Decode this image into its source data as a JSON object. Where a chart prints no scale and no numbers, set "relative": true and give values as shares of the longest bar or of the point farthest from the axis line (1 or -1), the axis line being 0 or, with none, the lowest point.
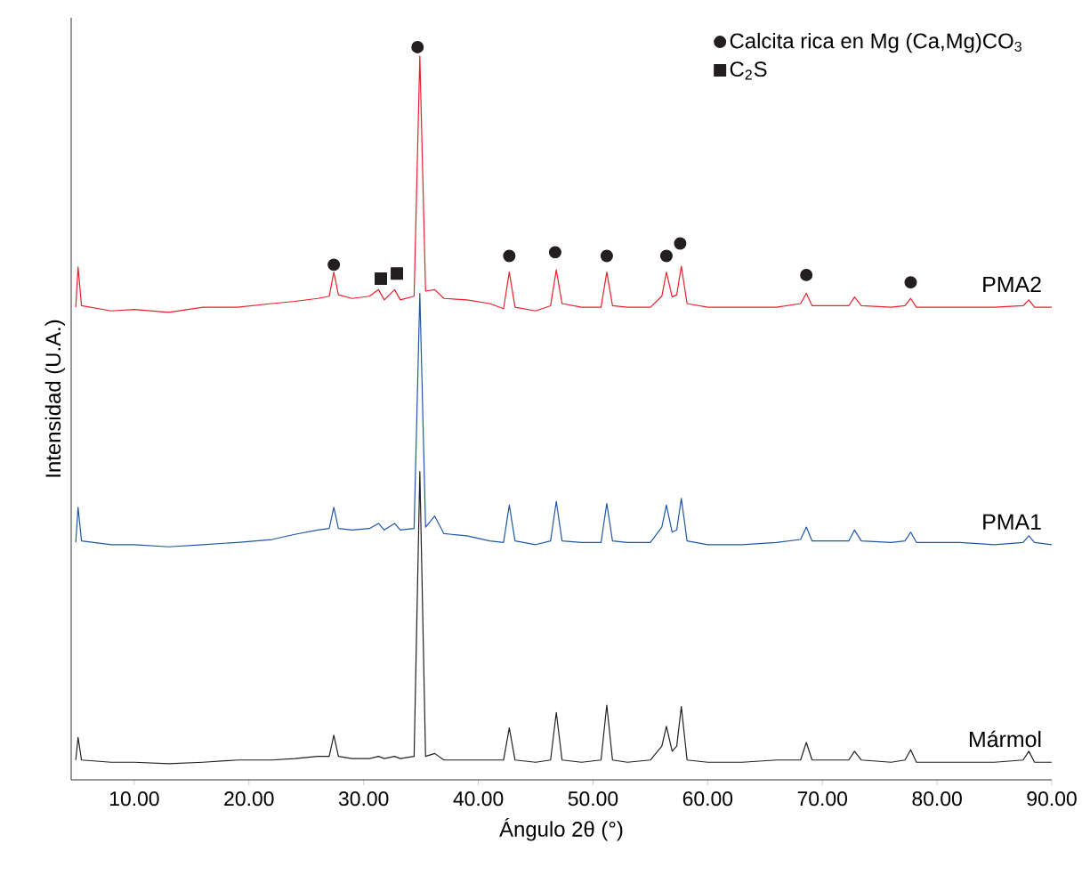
{
  "chart_data": {
    "type": "line",
    "relative": true,
    "xlabel": "Ángulo 2θ (°)",
    "ylabel": "Intensidad (U.A.)",
    "legend": "top right",
    "xlim": [
      4.5,
      90
    ],
    "xticks": [
      {
        "value": 10,
        "label": "10.00"
      },
      {
        "value": 20,
        "label": "20.00"
      },
      {
        "value": 30,
        "label": "30.00"
      },
      {
        "value": 40,
        "label": "40.00"
      },
      {
        "value": 50,
        "label": "50.00"
      },
      {
        "value": 60,
        "label": "60.00"
      },
      {
        "value": 70,
        "label": "70.00"
      },
      {
        "value": 80,
        "label": "80.00"
      },
      {
        "value": 90,
        "label": "90.00"
      }
    ],
    "x": [
      4.9,
      5.1,
      5.4,
      8,
      10,
      13,
      16,
      19,
      22,
      24,
      26,
      27,
      27.4,
      27.8,
      29,
      30.5,
      31.3,
      31.8,
      32.7,
      33.2,
      34.4,
      34.9,
      35.4,
      36.2,
      37,
      39,
      41,
      42.2,
      42.7,
      43.2,
      45,
      46.3,
      46.8,
      47.3,
      49,
      50.7,
      51.2,
      51.7,
      53,
      55,
      56,
      56.4,
      56.9,
      57.3,
      57.7,
      58.2,
      60,
      63,
      66,
      68.1,
      68.6,
      69.1,
      72.3,
      72.8,
      73.4,
      76,
      77.2,
      77.7,
      78.2,
      82,
      85,
      87.5,
      88,
      88.5,
      90
    ],
    "series": [
      {
        "name": "PMA2",
        "color": "#e8202a",
        "values": [
          0.645,
          0.7,
          0.647,
          0.64,
          0.642,
          0.638,
          0.645,
          0.645,
          0.65,
          0.653,
          0.657,
          0.66,
          0.693,
          0.662,
          0.657,
          0.66,
          0.669,
          0.655,
          0.669,
          0.655,
          0.66,
          0.988,
          0.667,
          0.669,
          0.657,
          0.655,
          0.65,
          0.643,
          0.693,
          0.645,
          0.64,
          0.647,
          0.696,
          0.65,
          0.645,
          0.645,
          0.693,
          0.647,
          0.645,
          0.645,
          0.66,
          0.693,
          0.659,
          0.662,
          0.701,
          0.65,
          0.645,
          0.645,
          0.645,
          0.65,
          0.664,
          0.647,
          0.647,
          0.659,
          0.647,
          0.645,
          0.647,
          0.657,
          0.645,
          0.645,
          0.645,
          0.647,
          0.655,
          0.645,
          0.645
        ]
      },
      {
        "name": "PMA1",
        "color": "#1f56a6",
        "values": [
          0.324,
          0.372,
          0.326,
          0.321,
          0.321,
          0.318,
          0.321,
          0.324,
          0.328,
          0.335,
          0.341,
          0.343,
          0.372,
          0.343,
          0.341,
          0.343,
          0.35,
          0.341,
          0.35,
          0.341,
          0.343,
          0.664,
          0.345,
          0.36,
          0.336,
          0.333,
          0.326,
          0.324,
          0.375,
          0.326,
          0.321,
          0.326,
          0.38,
          0.326,
          0.324,
          0.324,
          0.377,
          0.326,
          0.324,
          0.324,
          0.345,
          0.375,
          0.338,
          0.341,
          0.384,
          0.326,
          0.321,
          0.321,
          0.324,
          0.328,
          0.345,
          0.326,
          0.326,
          0.341,
          0.326,
          0.324,
          0.326,
          0.338,
          0.324,
          0.324,
          0.321,
          0.324,
          0.333,
          0.324,
          0.321
        ]
      },
      {
        "name": "Mármol",
        "color": "#231f20",
        "values": [
          0.027,
          0.058,
          0.027,
          0.024,
          0.024,
          0.022,
          0.024,
          0.027,
          0.027,
          0.029,
          0.032,
          0.032,
          0.061,
          0.032,
          0.029,
          0.029,
          0.032,
          0.029,
          0.032,
          0.029,
          0.032,
          0.421,
          0.032,
          0.036,
          0.027,
          0.027,
          0.027,
          0.027,
          0.071,
          0.027,
          0.024,
          0.027,
          0.092,
          0.027,
          0.024,
          0.027,
          0.102,
          0.027,
          0.024,
          0.027,
          0.046,
          0.073,
          0.039,
          0.046,
          0.1,
          0.027,
          0.024,
          0.024,
          0.027,
          0.027,
          0.051,
          0.027,
          0.027,
          0.039,
          0.027,
          0.024,
          0.027,
          0.041,
          0.024,
          0.024,
          0.024,
          0.027,
          0.039,
          0.024,
          0.024
        ]
      },
      {
        "name": "Calcita rica en Mg (Ca,Mg)CO$_{3}$",
        "type": "scatter",
        "marker": "circle",
        "color": "#231f20",
        "x": [
          27.4,
          34.7,
          42.7,
          46.7,
          51.2,
          56.4,
          57.6,
          68.6,
          77.7
        ],
        "values": [
          0.703,
          1.0,
          0.715,
          0.72,
          0.715,
          0.715,
          0.732,
          0.689,
          0.679
        ]
      },
      {
        "name": "C$_{2}$S",
        "type": "scatter",
        "marker": "square",
        "color": "#231f20",
        "x": [
          31.5,
          32.9
        ],
        "values": [
          0.684,
          0.691
        ]
      }
    ]
  }
}
